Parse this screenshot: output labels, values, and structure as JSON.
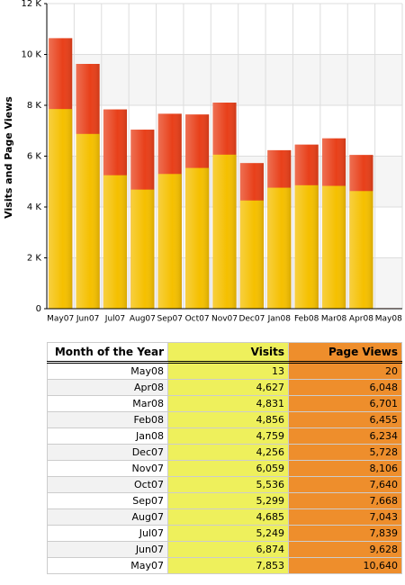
{
  "chart_data": {
    "type": "bar",
    "ylabel": "Visits and Page Views",
    "categories": [
      "May07",
      "Jun07",
      "Jul07",
      "Aug07",
      "Sep07",
      "Oct07",
      "Nov07",
      "Dec07",
      "Jan08",
      "Feb08",
      "Mar08",
      "Apr08",
      "May08"
    ],
    "series": [
      {
        "name": "Visits",
        "color": "#f5c000",
        "values": [
          7853,
          6874,
          5249,
          4685,
          5299,
          5536,
          6059,
          4256,
          4759,
          4856,
          4831,
          4627,
          13
        ]
      },
      {
        "name": "Page Views",
        "color": "#e8401a",
        "values": [
          10640,
          9628,
          7839,
          7043,
          7668,
          7640,
          8106,
          5728,
          6234,
          6455,
          6701,
          6048,
          20
        ]
      }
    ],
    "ylim": [
      0,
      12000
    ],
    "yticks": [
      0,
      {
        "value": 2000,
        "label": "2 K"
      },
      {
        "value": 4000,
        "label": "4 K"
      },
      {
        "value": 6000,
        "label": "6 K"
      },
      {
        "value": 8000,
        "label": "8 K"
      },
      {
        "value": 10000,
        "label": "10 K"
      },
      {
        "value": 12000,
        "label": "12 K"
      }
    ],
    "grid": true
  },
  "table": {
    "columns": [
      "Month of the Year",
      "Visits",
      "Page Views"
    ],
    "rows": [
      [
        "May08",
        "13",
        "20"
      ],
      [
        "Apr08",
        "4,627",
        "6,048"
      ],
      [
        "Mar08",
        "4,831",
        "6,701"
      ],
      [
        "Feb08",
        "4,856",
        "6,455"
      ],
      [
        "Jan08",
        "4,759",
        "6,234"
      ],
      [
        "Dec07",
        "4,256",
        "5,728"
      ],
      [
        "Nov07",
        "6,059",
        "8,106"
      ],
      [
        "Oct07",
        "5,536",
        "7,640"
      ],
      [
        "Sep07",
        "5,299",
        "7,668"
      ],
      [
        "Aug07",
        "4,685",
        "7,043"
      ],
      [
        "Jul07",
        "5,249",
        "7,839"
      ],
      [
        "Jun07",
        "6,874",
        "9,628"
      ],
      [
        "May07",
        "7,853",
        "10,640"
      ]
    ]
  }
}
